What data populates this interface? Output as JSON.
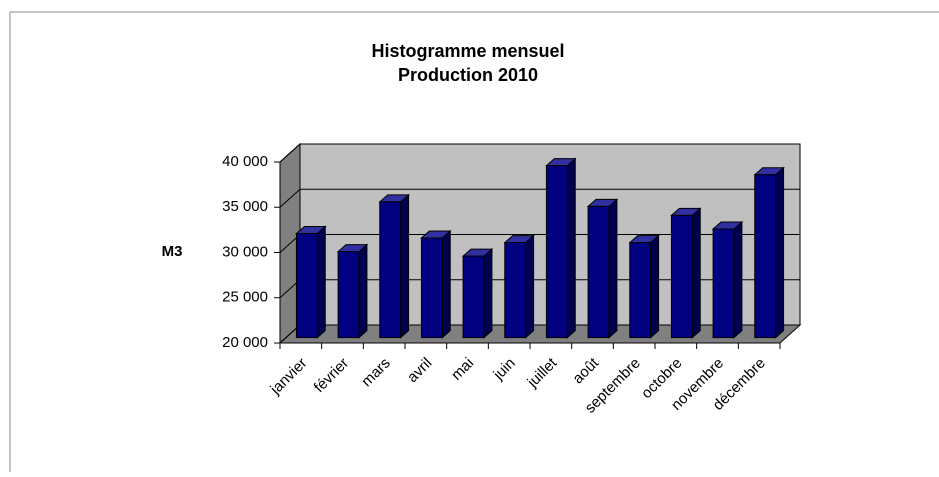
{
  "chart_data": {
    "type": "bar3d",
    "title": "Histogramme mensuel",
    "subtitle": "Production 2010",
    "ylabel": "M3",
    "categories": [
      "janvier",
      "février",
      "mars",
      "avril",
      "mai",
      "juin",
      "juillet",
      "août",
      "septembre",
      "octobre",
      "novembre",
      "décembre"
    ],
    "values": [
      31500,
      29500,
      35000,
      31000,
      29000,
      30500,
      39000,
      34500,
      30500,
      33500,
      32000,
      38000
    ],
    "color": "#000080",
    "ylim": [
      20000,
      40000
    ],
    "yticks": [
      {
        "value": 20000,
        "label": "20 000"
      },
      {
        "value": 25000,
        "label": "25 000"
      },
      {
        "value": 30000,
        "label": "30 000"
      },
      {
        "value": 35000,
        "label": "35 000"
      },
      {
        "value": 40000,
        "label": "40 000"
      }
    ],
    "grid": true
  }
}
